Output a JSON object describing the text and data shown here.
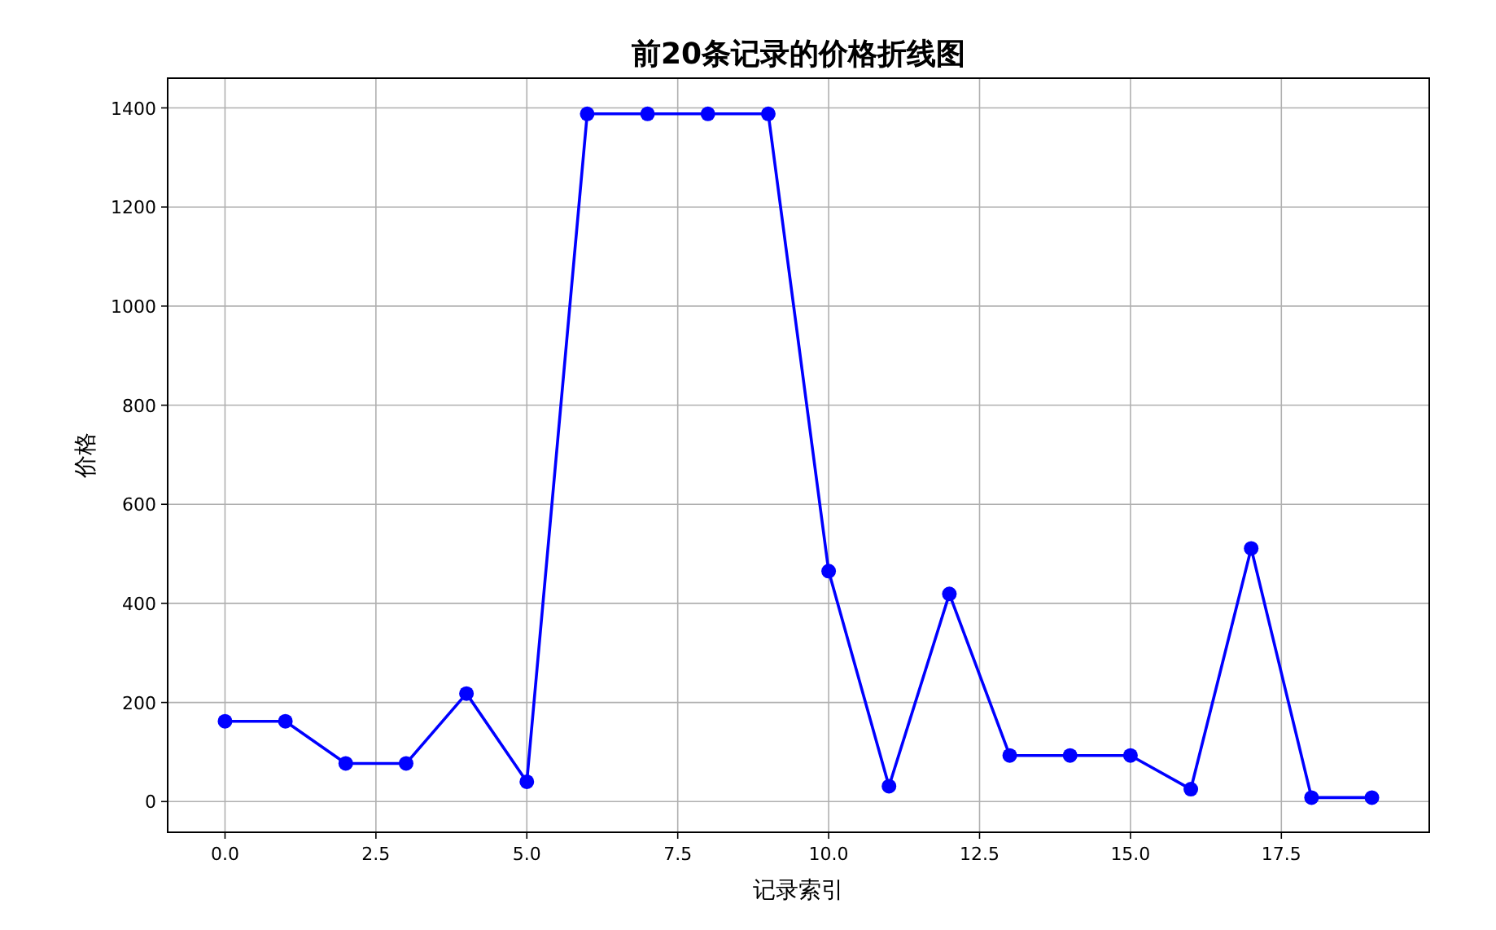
{
  "chart_data": {
    "type": "line",
    "title": "前20条记录的价格折线图",
    "xlabel": "记录索引",
    "ylabel": "价格",
    "x": [
      0,
      1,
      2,
      3,
      4,
      5,
      6,
      7,
      8,
      9,
      10,
      11,
      12,
      13,
      14,
      15,
      16,
      17,
      18,
      19
    ],
    "series": [
      {
        "color": "#0000ff",
        "values": [
          162,
          162,
          77,
          77,
          218,
          40,
          1388,
          1388,
          1388,
          1388,
          465,
          31,
          419,
          93,
          93,
          93,
          25,
          511,
          8,
          8
        ]
      }
    ],
    "xlim": [
      -0.95,
      19.95
    ],
    "ylim": [
      -62,
      1460
    ],
    "xticks": [
      {
        "value": 0,
        "label": "0.0"
      },
      {
        "value": 2.5,
        "label": "2.5"
      },
      {
        "value": 5,
        "label": "5.0"
      },
      {
        "value": 7.5,
        "label": "7.5"
      },
      {
        "value": 10,
        "label": "10.0"
      },
      {
        "value": 12.5,
        "label": "12.5"
      },
      {
        "value": 15,
        "label": "15.0"
      },
      {
        "value": 17.5,
        "label": "17.5"
      }
    ],
    "yticks": [
      0,
      200,
      400,
      600,
      800,
      1000,
      1200,
      1400
    ],
    "grid": true,
    "marker": "circle",
    "line_style": "solid"
  }
}
